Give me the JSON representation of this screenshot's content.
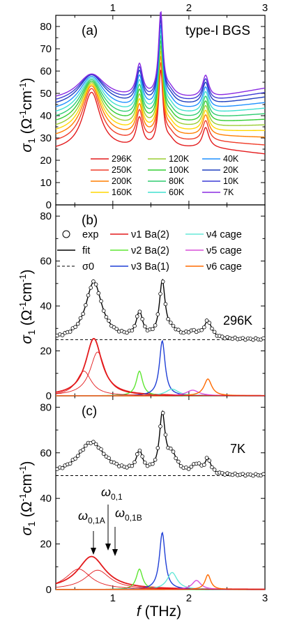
{
  "chart_data": [
    {
      "panel": "(a)",
      "type": "line",
      "title": "type-I BGS",
      "xlabel": "",
      "ylabel": "σ1 (Ω-1cm-1)",
      "xlim": [
        0.25,
        3.0
      ],
      "ylim": [
        0,
        85
      ],
      "x_ticks": [
        "1",
        "2",
        "3"
      ],
      "y_ticks": [
        "0",
        "10",
        "20",
        "30",
        "40",
        "50",
        "60",
        "70",
        "80"
      ],
      "legend_position": "bottom-center",
      "series": [
        {
          "name": "296K",
          "color": "#e31a1c",
          "offset": 0,
          "tail": -3.0
        },
        {
          "name": "250K",
          "color": "#f03c28",
          "offset": 3.0,
          "tail": -2.0
        },
        {
          "name": "200K",
          "color": "#ff7f00",
          "offset": 5.5,
          "tail": -1.0
        },
        {
          "name": "160K",
          "color": "#ffd700",
          "offset": 7.5,
          "tail": 0
        },
        {
          "name": "120K",
          "color": "#9acd32",
          "offset": 9.5,
          "tail": 0.5
        },
        {
          "name": "100K",
          "color": "#32cd32",
          "offset": 11.5,
          "tail": 1.0
        },
        {
          "name": "80K",
          "color": "#2ecc71",
          "offset": 13.5,
          "tail": 1.5
        },
        {
          "name": "60K",
          "color": "#40e0d0",
          "offset": 15.5,
          "tail": 2.0
        },
        {
          "name": "40K",
          "color": "#1e90ff",
          "offset": 17.5,
          "tail": 2.5
        },
        {
          "name": "20K",
          "color": "#1f3fbf",
          "offset": 19.5,
          "tail": 3.0
        },
        {
          "name": "10K",
          "color": "#3b3bd6",
          "offset": 21.0,
          "tail": 3.5
        },
        {
          "name": "7K",
          "color": "#8a2be2",
          "offset": 22.5,
          "tail": 4.0
        }
      ]
    },
    {
      "panel": "(b)",
      "type": "line",
      "annotation": "296K",
      "ylabel": "σ1 (Ω-1cm-1)",
      "xlim": [
        0.25,
        3.0
      ],
      "ylim": [
        0,
        85
      ],
      "y_ticks": [
        "0",
        "20",
        "40",
        "60",
        "80"
      ],
      "baseline_sigma0": 25,
      "legend": [
        {
          "label": "exp",
          "style": "circle"
        },
        {
          "label": "fit",
          "style": "solid"
        },
        {
          "label": "σ0",
          "style": "dashed"
        },
        {
          "label": "ν1 Ba(2)",
          "color": "#e31a1c"
        },
        {
          "label": "ν2 Ba(2)",
          "color": "#5ee632"
        },
        {
          "label": "ν3 Ba(1)",
          "color": "#1f3fd6"
        },
        {
          "label": "ν4 cage",
          "color": "#66e8d8"
        },
        {
          "label": "ν5 cage",
          "color": "#d94fd9"
        },
        {
          "label": "ν6 cage",
          "color": "#ff6a00"
        }
      ],
      "oscillators": [
        {
          "name": "ν1",
          "center": 0.75,
          "amp": 25.5,
          "width": 0.13
        },
        {
          "name": "ν2",
          "center": 1.35,
          "amp": 11,
          "width": 0.05
        },
        {
          "name": "ν3",
          "center": 1.65,
          "amp": 24.5,
          "width": 0.045
        },
        {
          "name": "ν4",
          "center": 1.78,
          "amp": 3,
          "width": 0.1
        },
        {
          "name": "ν5",
          "center": 2.05,
          "amp": 2.5,
          "width": 0.1
        },
        {
          "name": "ν6",
          "center": 2.25,
          "amp": 7.5,
          "width": 0.06
        }
      ],
      "nu1_components": [
        {
          "center": 0.62,
          "amp": 11,
          "width": 0.12
        },
        {
          "center": 0.8,
          "amp": 19.5,
          "width": 0.12
        }
      ]
    },
    {
      "panel": "(c)",
      "type": "line",
      "annotation": "7K",
      "xlabel": "f (THz)",
      "ylabel": "σ1 (Ω-1cm-1)",
      "xlim": [
        0.25,
        3.0
      ],
      "ylim": [
        0,
        85
      ],
      "x_ticks": [
        "1",
        "2",
        "3"
      ],
      "y_ticks": [
        "0",
        "20",
        "40",
        "60",
        "80"
      ],
      "baseline_sigma0": 50,
      "annotations": [
        "ω0,1A",
        "ω0,1",
        "ω0,1B"
      ],
      "oscillators": [
        {
          "name": "ν1",
          "center": 0.72,
          "amp": 14.5,
          "width": 0.22
        },
        {
          "name": "ν2",
          "center": 1.35,
          "amp": 9,
          "width": 0.05
        },
        {
          "name": "ν3",
          "center": 1.65,
          "amp": 25,
          "width": 0.045
        },
        {
          "name": "ν4",
          "center": 1.78,
          "amp": 7.5,
          "width": 0.08
        },
        {
          "name": "ν5",
          "center": 2.1,
          "amp": 4,
          "width": 0.07
        },
        {
          "name": "ν6",
          "center": 2.25,
          "amp": 6.5,
          "width": 0.045
        }
      ],
      "nu1_components": [
        {
          "center": 0.55,
          "amp": 9,
          "width": 0.2
        },
        {
          "center": 0.8,
          "amp": 8.5,
          "width": 0.2
        }
      ]
    }
  ]
}
